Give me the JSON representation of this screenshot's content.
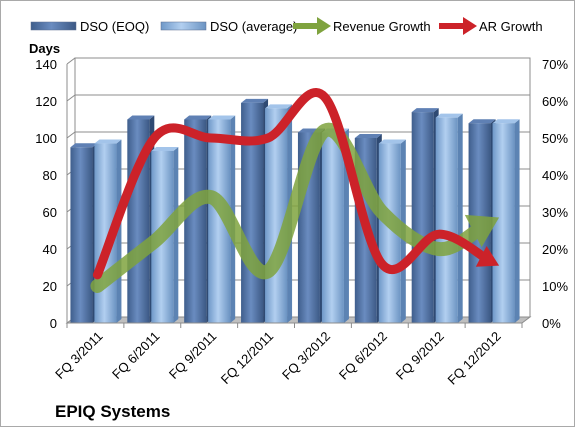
{
  "chart_data": {
    "type": "bar",
    "title": "EPIQ Systems",
    "ylabel": "Days",
    "categories": [
      "FQ 3/2011",
      "FQ 6/2011",
      "FQ 9/2011",
      "FQ 12/2011",
      "FQ 3/2012",
      "FQ 6/2012",
      "FQ 9/2012",
      "FQ 12/2012"
    ],
    "ylim": [
      0,
      140
    ],
    "y2lim": [
      0,
      0.7
    ],
    "y_ticks": [
      "0",
      "20",
      "40",
      "60",
      "80",
      "100",
      "120",
      "140"
    ],
    "y2_ticks": [
      "0%",
      "10%",
      "20%",
      "30%",
      "40%",
      "50%",
      "60%",
      "70%"
    ],
    "legend_position": "top",
    "grid": true,
    "series": [
      {
        "name": "DSO (EOQ)",
        "kind": "bar",
        "axis": "left",
        "color": "#4f6f9f",
        "values": [
          95,
          110,
          110,
          119,
          103,
          100,
          114,
          108
        ]
      },
      {
        "name": "DSO (average)",
        "kind": "bar",
        "axis": "left",
        "color": "#7fa9d8",
        "values": [
          97,
          93,
          110,
          116,
          103,
          97,
          111,
          108
        ]
      },
      {
        "name": "Revenue Growth",
        "kind": "arrow-line",
        "axis": "right",
        "color": "#7fa33e",
        "values": [
          0.1,
          0.22,
          0.34,
          0.14,
          0.52,
          0.3,
          0.2,
          0.28
        ]
      },
      {
        "name": "AR Growth",
        "kind": "arrow-line",
        "axis": "right",
        "color": "#cc2229",
        "values": [
          0.13,
          0.5,
          0.5,
          0.5,
          0.61,
          0.16,
          0.24,
          0.16
        ]
      }
    ]
  }
}
